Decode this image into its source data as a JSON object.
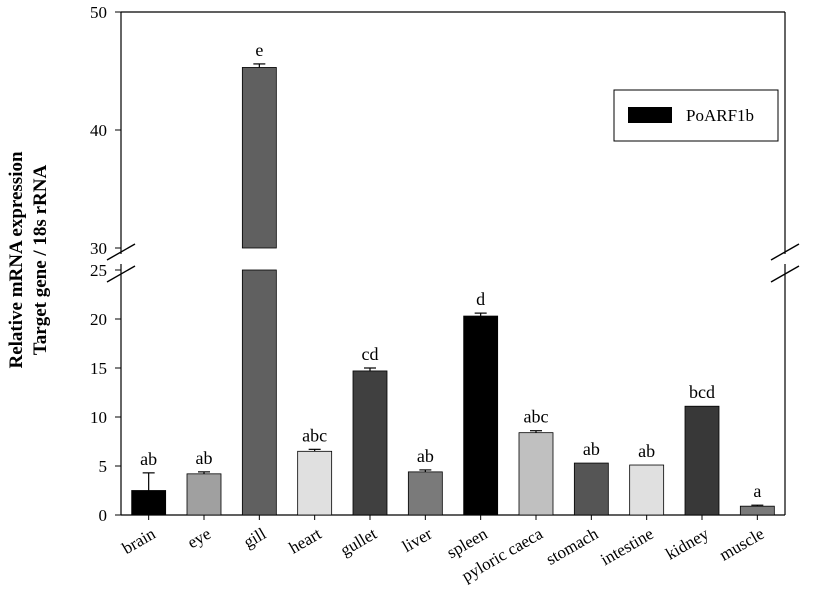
{
  "chart_data": {
    "type": "bar",
    "title": "",
    "xlabel": "",
    "ylabel_lines": [
      "Relative mRNA expression",
      "Target gene / 18s rRNA"
    ],
    "axis_break": {
      "lower_range": [
        0,
        25
      ],
      "upper_range": [
        30,
        50
      ]
    },
    "ytick_labels_lower": [
      "0",
      "5",
      "10",
      "15",
      "20",
      "25"
    ],
    "ytick_labels_upper": [
      "30",
      "40",
      "50"
    ],
    "grid": false,
    "legend": {
      "placement": "top-right",
      "entries": [
        {
          "label": "PoARF1b",
          "color": "#000000"
        }
      ]
    },
    "categories": [
      "brain",
      "eye",
      "gill",
      "heart",
      "gullet",
      "liver",
      "spleen",
      "pyloric caeca",
      "stomach",
      "intestine",
      "kidney",
      "muscle"
    ],
    "series": [
      {
        "name": "PoARF1b",
        "values": [
          2.5,
          4.2,
          45.3,
          6.5,
          14.7,
          4.4,
          20.3,
          8.4,
          5.3,
          5.1,
          11.1,
          0.9
        ],
        "errors": [
          1.8,
          0.2,
          0.3,
          0.2,
          0.3,
          0.2,
          0.3,
          0.2,
          0.0,
          0.0,
          0.0,
          0.1
        ],
        "significance": [
          "ab",
          "ab",
          "e",
          "abc",
          "cd",
          "ab",
          "d",
          "abc",
          "ab",
          "ab",
          "bcd",
          "a"
        ],
        "bar_colors": [
          "#000000",
          "#a0a0a0",
          "#606060",
          "#e0e0e0",
          "#404040",
          "#7a7a7a",
          "#000000",
          "#c0c0c0",
          "#555555",
          "#e0e0e0",
          "#383838",
          "#7a7a7a"
        ]
      }
    ]
  }
}
